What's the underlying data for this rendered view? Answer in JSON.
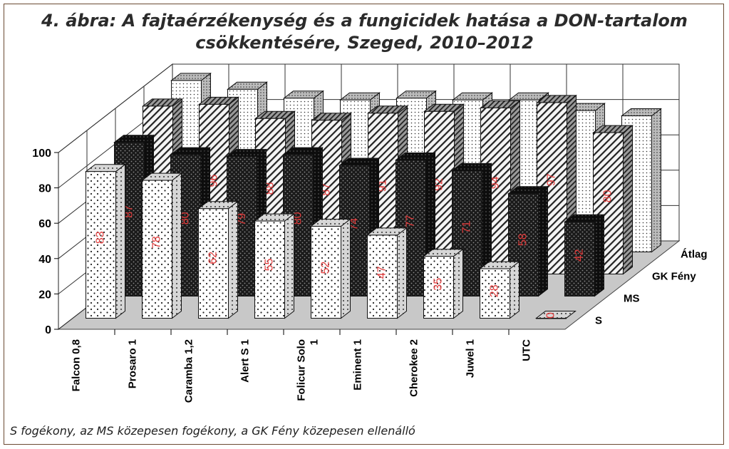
{
  "title_line1": "4. ábra: A fajtaérzékenység és a fungicidek hatása a DON-tartalom",
  "title_line2": "csökkentésére, Szeged, 2010–2012",
  "caption": "S fogékony, az MS közepesen fogékony, a GK Fény közepesen ellenálló",
  "chart_data": {
    "type": "bar",
    "title": "4. ábra: A fajtaérzékenység és a fungicidek hatása a DON-tartalom csökkentésére, Szeged, 2010–2012",
    "categories": [
      "Falcon 0,8",
      "Prosaro 1",
      "Caramba 1,2",
      "Alert S 1",
      "Folicur Solo 1",
      "Eminent 1",
      "Cherokee 2",
      "Juwel 1",
      "UTC"
    ],
    "series": [
      {
        "name": "S",
        "values": [
          83,
          78,
          62,
          55,
          52,
          47,
          35,
          28,
          0
        ]
      },
      {
        "name": "MS",
        "values": [
          87,
          80,
          79,
          80,
          74,
          77,
          71,
          58,
          42
        ]
      },
      {
        "name": "GK Fény",
        "values": [
          95,
          96,
          88,
          87,
          91,
          92,
          94,
          97,
          80
        ]
      },
      {
        "name": "Átlag",
        "values": [
          null,
          null,
          null,
          null,
          null,
          null,
          null,
          null,
          null
        ]
      }
    ],
    "data_labels": {
      "S": [
        "83",
        "78",
        "62",
        "55",
        "52",
        "47",
        "35",
        "28",
        "0"
      ],
      "MS": [
        "87",
        "80",
        "79",
        "80",
        "74",
        "77",
        "71",
        "58",
        "42"
      ],
      "GK Fény": [
        "95",
        "96",
        "88",
        "87",
        "91",
        "92",
        "94",
        "97",
        "80"
      ]
    },
    "yticks": [
      "0",
      "20",
      "40",
      "60",
      "80",
      "100"
    ],
    "ylim": [
      0,
      100
    ],
    "atlag_estimates": [
      97,
      92,
      87,
      86,
      87,
      86,
      86,
      80,
      77
    ],
    "grid": true,
    "colors": {
      "S": "#ffffff",
      "MS": "#1c1c1c",
      "GK Fény": "#f3f3f3",
      "Átlag": "#ffffff",
      "floor": "#c8c8c8",
      "value_label": "#e23a3a"
    }
  }
}
